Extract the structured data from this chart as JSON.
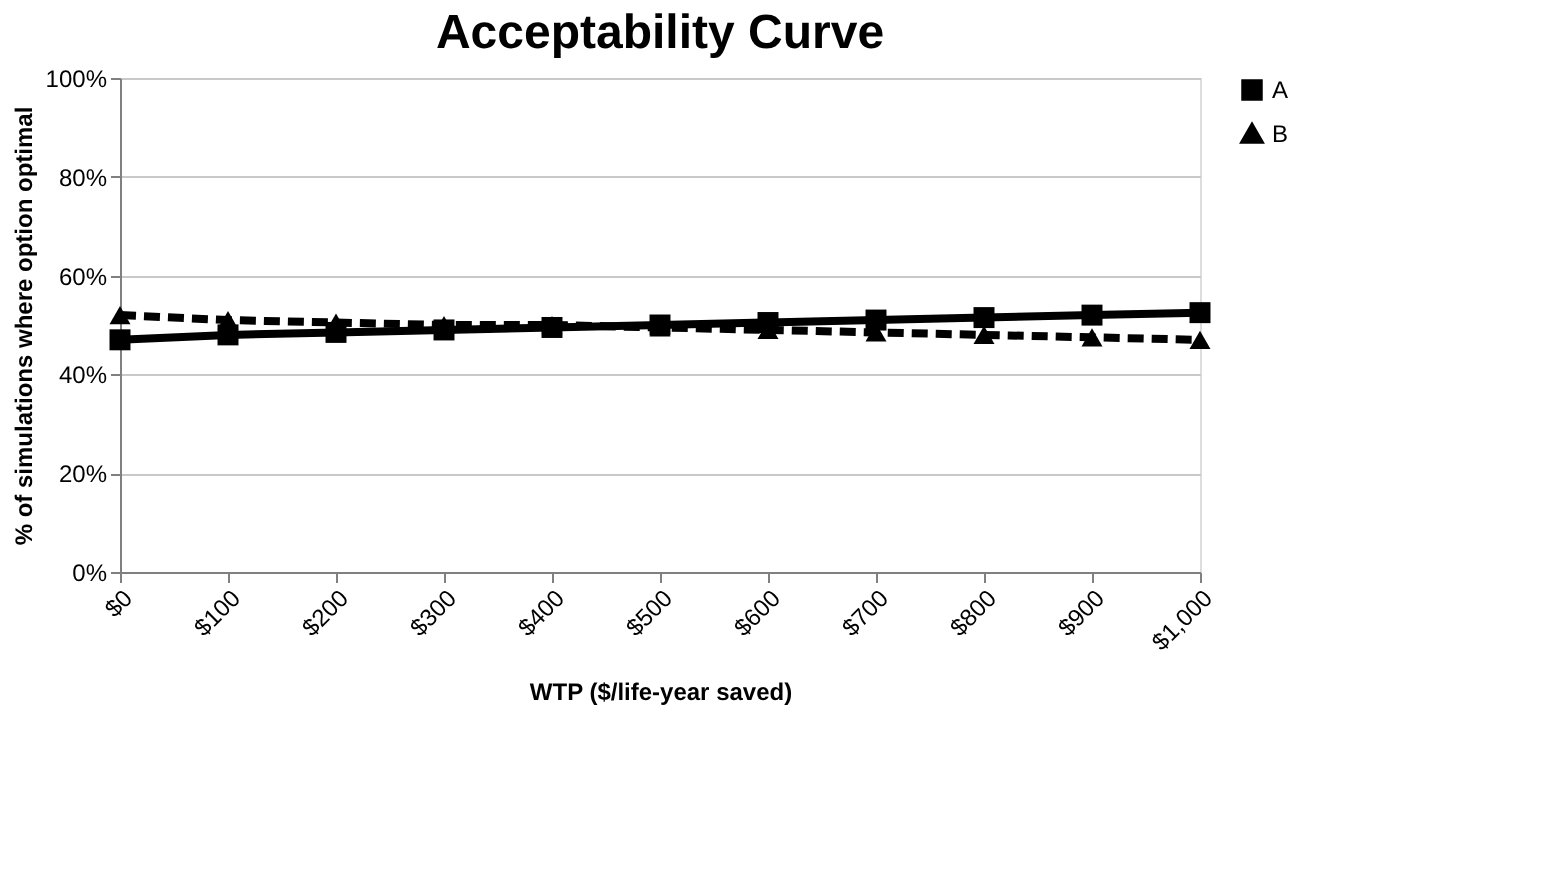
{
  "chart_data": {
    "type": "line",
    "title": "Acceptability Curve",
    "xlabel": "WTP ($/life-year saved)",
    "ylabel": "% of simulations where option optimal",
    "categories": [
      "$0",
      "$100",
      "$200",
      "$300",
      "$400",
      "$500",
      "$600",
      "$700",
      "$800",
      "$900",
      "$1,000"
    ],
    "series": [
      {
        "name": "A",
        "color": "#000000",
        "marker": "square",
        "line_style": "solid",
        "values": [
          47,
          48,
          48.5,
          49,
          49.5,
          50,
          50.5,
          51,
          51.5,
          52,
          52.5
        ]
      },
      {
        "name": "B",
        "color": "#000000",
        "marker": "triangle",
        "line_style": "dashed",
        "values": [
          52,
          51,
          50.5,
          50,
          50,
          49.5,
          49,
          48.5,
          48,
          47.5,
          47
        ]
      }
    ],
    "ylim": [
      0,
      100
    ],
    "yticks": [
      {
        "value": 0,
        "label": "0%"
      },
      {
        "value": 20,
        "label": "20%"
      },
      {
        "value": 40,
        "label": "40%"
      },
      {
        "value": 60,
        "label": "60%"
      },
      {
        "value": 80,
        "label": "80%"
      },
      {
        "value": 100,
        "label": "100%"
      }
    ],
    "grid": "y",
    "legend": "right"
  }
}
